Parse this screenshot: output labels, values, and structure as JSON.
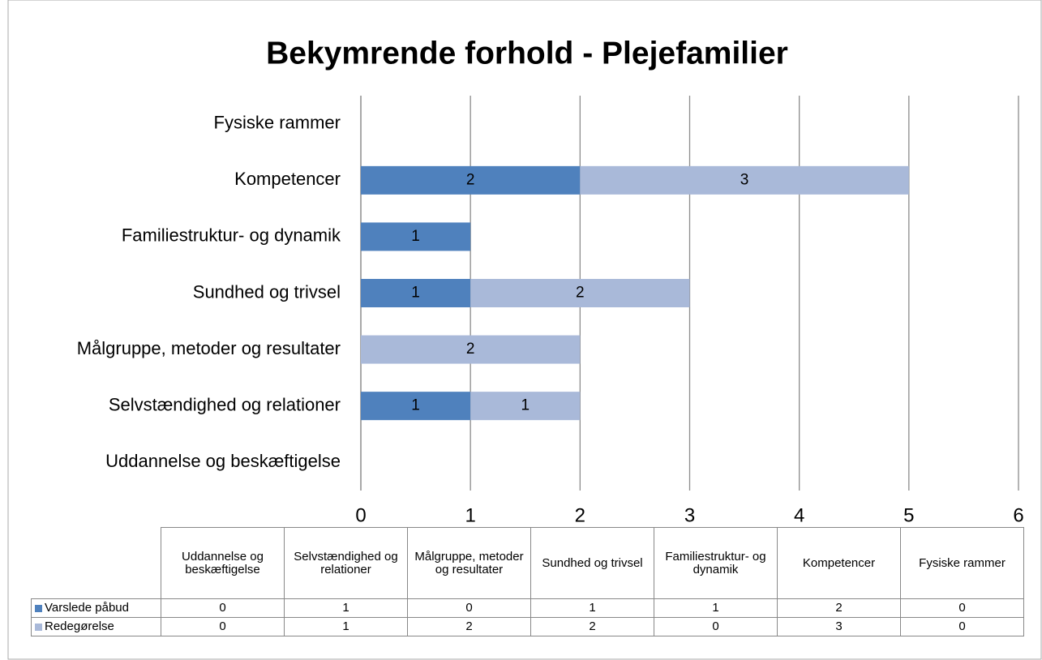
{
  "chart_data": {
    "type": "stacked_barh",
    "title": "Bekymrende forhold - Plejefamilier",
    "categories": [
      "Uddannelse og beskæftigelse",
      "Selvstændighed og relationer",
      "Målgruppe, metoder og resultater",
      "Sundhed og trivsel",
      "Familiestruktur- og dynamik",
      "Kompetencer",
      "Fysiske rammer"
    ],
    "series": [
      {
        "name": "Varslede påbud",
        "color": "#4f81bd",
        "values": [
          0,
          1,
          0,
          1,
          1,
          2,
          0
        ]
      },
      {
        "name": "Redegørelse",
        "color": "#a9b9d9",
        "values": [
          0,
          1,
          2,
          2,
          0,
          3,
          0
        ]
      }
    ],
    "xlim": [
      0,
      6
    ],
    "xticks": [
      0,
      1,
      2,
      3,
      4,
      5,
      6
    ],
    "grid": true,
    "data_table": true
  }
}
